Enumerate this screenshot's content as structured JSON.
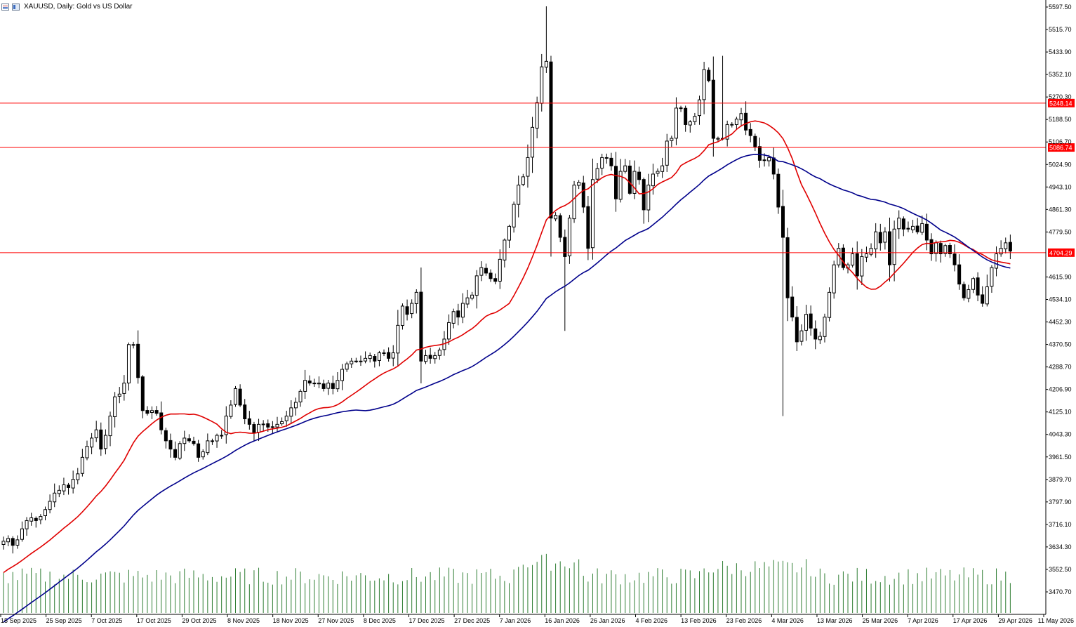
{
  "window": {
    "title": "XAUUSD, Daily:  Gold vs US Dollar",
    "icons": [
      "menu-icon",
      "window-icon"
    ]
  },
  "chart_data": {
    "type": "candlestick",
    "symbol": "XAUUSD",
    "timeframe": "Daily",
    "description": "Gold vs US Dollar",
    "y_range": [
      3430,
      5620
    ],
    "y_ticks": [
      {
        "value": 5597.5,
        "label": "5597.50"
      },
      {
        "value": 5515.7,
        "label": "5515.70"
      },
      {
        "value": 5433.9,
        "label": "5433.90"
      },
      {
        "value": 5352.1,
        "label": "5352.10"
      },
      {
        "value": 5270.3,
        "label": "5270.30"
      },
      {
        "value": 5188.5,
        "label": "5188.50"
      },
      {
        "value": 5106.7,
        "label": "5106.70"
      },
      {
        "value": 5024.9,
        "label": "5024.90"
      },
      {
        "value": 4943.1,
        "label": "4943.10"
      },
      {
        "value": 4861.3,
        "label": "4861.30"
      },
      {
        "value": 4779.5,
        "label": "4779.50"
      },
      {
        "value": 4615.9,
        "label": "4615.90"
      },
      {
        "value": 4534.1,
        "label": "4534.10"
      },
      {
        "value": 4452.3,
        "label": "4452.30"
      },
      {
        "value": 4370.5,
        "label": "4370.50"
      },
      {
        "value": 4288.7,
        "label": "4288.70"
      },
      {
        "value": 4206.9,
        "label": "4206.90"
      },
      {
        "value": 4125.1,
        "label": "4125.10"
      },
      {
        "value": 4043.3,
        "label": "4043.30"
      },
      {
        "value": 3961.5,
        "label": "3961.50"
      },
      {
        "value": 3879.7,
        "label": "3879.70"
      },
      {
        "value": 3797.9,
        "label": "3797.90"
      },
      {
        "value": 3716.1,
        "label": "3716.10"
      },
      {
        "value": 3634.3,
        "label": "3634.30"
      },
      {
        "value": 3552.5,
        "label": "3552.50"
      },
      {
        "value": 3470.7,
        "label": "3470.70"
      }
    ],
    "x_tick_labels": [
      "15 Sep 2025",
      "25 Sep 2025",
      "7 Oct 2025",
      "17 Oct 2025",
      "29 Oct 2025",
      "8 Nov 2025",
      "18 Nov 2025",
      "27 Nov 2025",
      "8 Dec 2025",
      "17 Dec 2025",
      "27 Dec 2025",
      "7 Jan 2026",
      "16 Jan 2026",
      "26 Jan 2026",
      "4 Feb 2026",
      "13 Feb 2026",
      "23 Feb 2026",
      "4 Mar 2026",
      "13 Mar 2026",
      "25 Mar 2026",
      "7 Apr 2026",
      "17 Apr 2026",
      "29 Apr 2026",
      "11 May 2026"
    ],
    "horizontal_levels": [
      {
        "value": 5248.14,
        "label": "5248.14",
        "color": "#ff0000"
      },
      {
        "value": 5086.74,
        "label": "5086.74",
        "color": "#ff0000"
      },
      {
        "value": 4704.29,
        "label": "4704.29",
        "color": "#ff0000"
      }
    ],
    "ma_fast_color": "#e00000",
    "ma_slow_color": "#00008b",
    "volume_color": "#2e7d32",
    "closes": [
      3655,
      3665,
      3640,
      3660,
      3700,
      3730,
      3740,
      3730,
      3745,
      3770,
      3800,
      3830,
      3840,
      3860,
      3850,
      3880,
      3900,
      3960,
      4000,
      4030,
      4060,
      3990,
      4040,
      4110,
      4180,
      4190,
      4230,
      4370,
      4370,
      4250,
      4130,
      4120,
      4130,
      4120,
      4060,
      4020,
      3990,
      3960,
      4010,
      4030,
      4020,
      4010,
      3960,
      3980,
      4020,
      4020,
      4040,
      4040,
      4110,
      4150,
      4210,
      4150,
      4100,
      4080,
      4050,
      4080,
      4080,
      4070,
      4070,
      4080,
      4090,
      4110,
      4140,
      4160,
      4200,
      4240,
      4230,
      4230,
      4230,
      4210,
      4230,
      4210,
      4240,
      4280,
      4300,
      4310,
      4310,
      4310,
      4320,
      4330,
      4310,
      4340,
      4340,
      4320,
      4340,
      4440,
      4510,
      4480,
      4520,
      4560,
      4310,
      4330,
      4320,
      4330,
      4350,
      4390,
      4450,
      4490,
      4470,
      4520,
      4540,
      4550,
      4620,
      4650,
      4630,
      4610,
      4600,
      4680,
      4750,
      4800,
      4880,
      4950,
      4980,
      5050,
      5160,
      5250,
      5380,
      5400,
      4830,
      4840,
      4760,
      4690,
      4830,
      4950,
      4960,
      4870,
      4720,
      4970,
      5010,
      5050,
      5050,
      5020,
      4900,
      5000,
      5020,
      4920,
      5000,
      4970,
      4860,
      4950,
      4990,
      5000,
      5020,
      5110,
      5120,
      5230,
      5230,
      5170,
      5180,
      5200,
      5260,
      5370,
      5330,
      5120,
      5120,
      5120,
      5170,
      5170,
      5190,
      5210,
      5150,
      5130,
      5090,
      5040,
      5040,
      5050,
      4990,
      4870,
      4760,
      4540,
      4470,
      4380,
      4420,
      4480,
      4430,
      4390,
      4400,
      4470,
      4560,
      4660,
      4720,
      4650,
      4660,
      4700,
      4620,
      4690,
      4700,
      4720,
      4780,
      4740,
      4780,
      4660,
      4790,
      4830,
      4790,
      4790,
      4800,
      4780,
      4810,
      4750,
      4700,
      4740,
      4700,
      4730,
      4700,
      4660,
      4590,
      4540,
      4570,
      4610,
      4550,
      4520,
      4580,
      4650,
      4700,
      4720,
      4740,
      4710
    ]
  }
}
